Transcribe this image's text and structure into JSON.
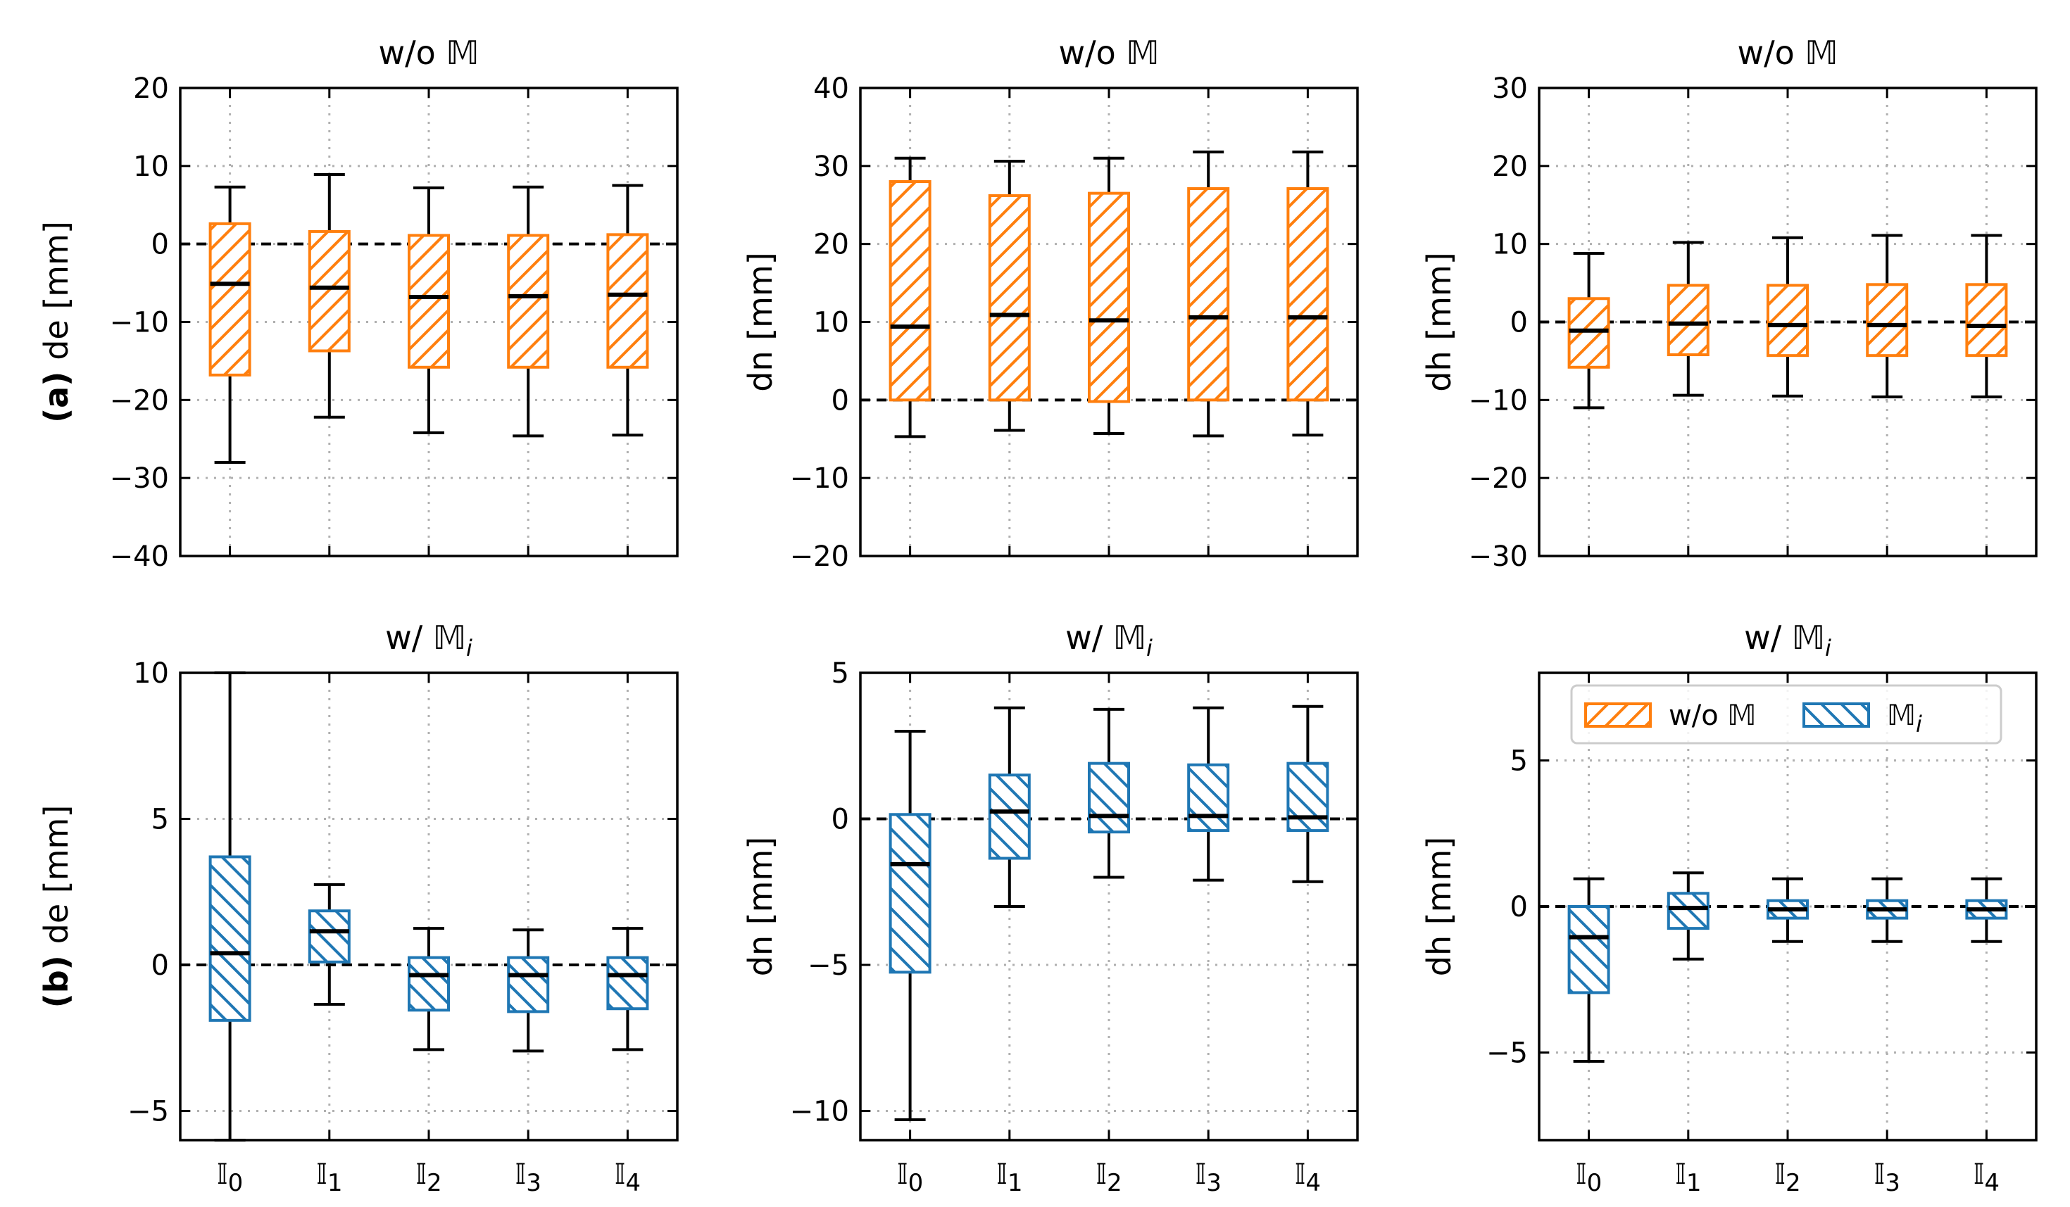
{
  "chart_data": [
    {
      "type": "box",
      "row_label": "(a)",
      "title": "w/o 𝕄",
      "ylabel": "de [mm]",
      "ylim": [
        -40,
        20
      ],
      "yticks": [
        -40,
        -30,
        -20,
        -10,
        0,
        10,
        20
      ],
      "ytick_labels": [
        "−40",
        "−30",
        "−20",
        "−10",
        "0",
        "10",
        "20"
      ],
      "categories": [
        "𝕀0",
        "𝕀1",
        "𝕀2",
        "𝕀3",
        "𝕀4"
      ],
      "color": "#ff7f0e",
      "hatch": "//",
      "reference_line": 0,
      "boxes": [
        {
          "whislo": -28,
          "q1": -16.8,
          "med": -5.1,
          "q3": 2.6,
          "whishi": 7.3
        },
        {
          "whislo": -22.2,
          "q1": -13.7,
          "med": -5.6,
          "q3": 1.6,
          "whishi": 8.9
        },
        {
          "whislo": -24.2,
          "q1": -15.8,
          "med": -6.8,
          "q3": 1.1,
          "whishi": 7.2
        },
        {
          "whislo": -24.6,
          "q1": -15.8,
          "med": -6.7,
          "q3": 1.1,
          "whishi": 7.3
        },
        {
          "whislo": -24.5,
          "q1": -15.8,
          "med": -6.5,
          "q3": 1.2,
          "whishi": 7.5
        }
      ]
    },
    {
      "type": "box",
      "title": "w/o 𝕄",
      "ylabel": "dn [mm]",
      "ylim": [
        -20,
        40
      ],
      "yticks": [
        -20,
        -10,
        0,
        10,
        20,
        30,
        40
      ],
      "ytick_labels": [
        "−20",
        "−10",
        "0",
        "10",
        "20",
        "30",
        "40"
      ],
      "categories": [
        "𝕀0",
        "𝕀1",
        "𝕀2",
        "𝕀3",
        "𝕀4"
      ],
      "color": "#ff7f0e",
      "hatch": "//",
      "reference_line": 0,
      "boxes": [
        {
          "whislo": -4.7,
          "q1": 0,
          "med": 9.4,
          "q3": 28,
          "whishi": 31
        },
        {
          "whislo": -3.9,
          "q1": 0,
          "med": 10.9,
          "q3": 26.2,
          "whishi": 30.6
        },
        {
          "whislo": -4.3,
          "q1": -0.2,
          "med": 10.2,
          "q3": 26.5,
          "whishi": 31
        },
        {
          "whislo": -4.6,
          "q1": 0,
          "med": 10.6,
          "q3": 27.1,
          "whishi": 31.8
        },
        {
          "whislo": -4.5,
          "q1": 0,
          "med": 10.6,
          "q3": 27.1,
          "whishi": 31.8
        }
      ]
    },
    {
      "type": "box",
      "title": "w/o 𝕄",
      "ylabel": "dh [mm]",
      "ylim": [
        -30,
        30
      ],
      "yticks": [
        -30,
        -20,
        -10,
        0,
        10,
        20,
        30
      ],
      "ytick_labels": [
        "−30",
        "−20",
        "−10",
        "0",
        "10",
        "20",
        "30"
      ],
      "categories": [
        "𝕀0",
        "𝕀1",
        "𝕀2",
        "𝕀3",
        "𝕀4"
      ],
      "color": "#ff7f0e",
      "hatch": "//",
      "reference_line": 0,
      "boxes": [
        {
          "whislo": -11,
          "q1": -5.8,
          "med": -1.1,
          "q3": 3,
          "whishi": 8.8
        },
        {
          "whislo": -9.4,
          "q1": -4.2,
          "med": -0.2,
          "q3": 4.7,
          "whishi": 10.2
        },
        {
          "whislo": -9.5,
          "q1": -4.3,
          "med": -0.4,
          "q3": 4.7,
          "whishi": 10.8
        },
        {
          "whislo": -9.6,
          "q1": -4.3,
          "med": -0.4,
          "q3": 4.8,
          "whishi": 11.1
        },
        {
          "whislo": -9.6,
          "q1": -4.3,
          "med": -0.5,
          "q3": 4.8,
          "whishi": 11.1
        }
      ]
    },
    {
      "type": "box",
      "row_label": "(b)",
      "title": "w/ 𝕄i",
      "ylabel": "de [mm]",
      "ylim": [
        -6,
        10
      ],
      "yticks": [
        -5,
        0,
        5,
        10
      ],
      "ytick_labels": [
        "−5",
        "0",
        "5",
        "10"
      ],
      "categories": [
        "𝕀0",
        "𝕀1",
        "𝕀2",
        "𝕀3",
        "𝕀4"
      ],
      "color": "#1f77b4",
      "hatch": "\\\\",
      "reference_line": 0,
      "boxes": [
        {
          "whislo": -6,
          "q1": -1.9,
          "med": 0.4,
          "q3": 3.7,
          "whishi": 10
        },
        {
          "whislo": -1.35,
          "q1": 0.1,
          "med": 1.15,
          "q3": 1.85,
          "whishi": 2.75
        },
        {
          "whislo": -2.9,
          "q1": -1.55,
          "med": -0.35,
          "q3": 0.25,
          "whishi": 1.25
        },
        {
          "whislo": -2.95,
          "q1": -1.6,
          "med": -0.35,
          "q3": 0.25,
          "whishi": 1.2
        },
        {
          "whislo": -2.9,
          "q1": -1.5,
          "med": -0.35,
          "q3": 0.25,
          "whishi": 1.25
        }
      ]
    },
    {
      "type": "box",
      "title": "w/ 𝕄i",
      "ylabel": "dn [mm]",
      "ylim": [
        -11,
        5
      ],
      "yticks": [
        -10,
        -5,
        0,
        5
      ],
      "ytick_labels": [
        "−10",
        "−5",
        "0",
        "5"
      ],
      "categories": [
        "𝕀0",
        "𝕀1",
        "𝕀2",
        "𝕀3",
        "𝕀4"
      ],
      "color": "#1f77b4",
      "hatch": "\\\\",
      "reference_line": 0,
      "boxes": [
        {
          "whislo": -10.3,
          "q1": -5.25,
          "med": -1.55,
          "q3": 0.15,
          "whishi": 3
        },
        {
          "whislo": -3,
          "q1": -1.35,
          "med": 0.25,
          "q3": 1.5,
          "whishi": 3.8
        },
        {
          "whislo": -2,
          "q1": -0.45,
          "med": 0.1,
          "q3": 1.9,
          "whishi": 3.75
        },
        {
          "whislo": -2.1,
          "q1": -0.4,
          "med": 0.1,
          "q3": 1.85,
          "whishi": 3.8
        },
        {
          "whislo": -2.15,
          "q1": -0.4,
          "med": 0.05,
          "q3": 1.9,
          "whishi": 3.85
        }
      ]
    },
    {
      "type": "box",
      "title": "w/ 𝕄i",
      "ylabel": "dh [mm]",
      "ylim": [
        -8,
        8
      ],
      "yticks": [
        -5,
        0,
        5
      ],
      "ytick_labels": [
        "−5",
        "0",
        "5"
      ],
      "categories": [
        "𝕀0",
        "𝕀1",
        "𝕀2",
        "𝕀3",
        "𝕀4"
      ],
      "color": "#1f77b4",
      "hatch": "\\\\",
      "reference_line": 0,
      "boxes": [
        {
          "whislo": -5.3,
          "q1": -2.95,
          "med": -1.05,
          "q3": 0,
          "whishi": 0.95
        },
        {
          "whislo": -1.8,
          "q1": -0.75,
          "med": -0.05,
          "q3": 0.45,
          "whishi": 1.15
        },
        {
          "whislo": -1.2,
          "q1": -0.4,
          "med": -0.1,
          "q3": 0.2,
          "whishi": 0.95
        },
        {
          "whislo": -1.2,
          "q1": -0.4,
          "med": -0.1,
          "q3": 0.2,
          "whishi": 0.95
        },
        {
          "whislo": -1.2,
          "q1": -0.4,
          "med": -0.1,
          "q3": 0.2,
          "whishi": 0.95
        }
      ],
      "legend": {
        "placement": "upper center",
        "entries": [
          {
            "label": "w/o 𝕄",
            "color": "#ff7f0e",
            "hatch": "//"
          },
          {
            "label": "𝕄i",
            "color": "#1f77b4",
            "hatch": "\\\\"
          }
        ]
      }
    }
  ]
}
